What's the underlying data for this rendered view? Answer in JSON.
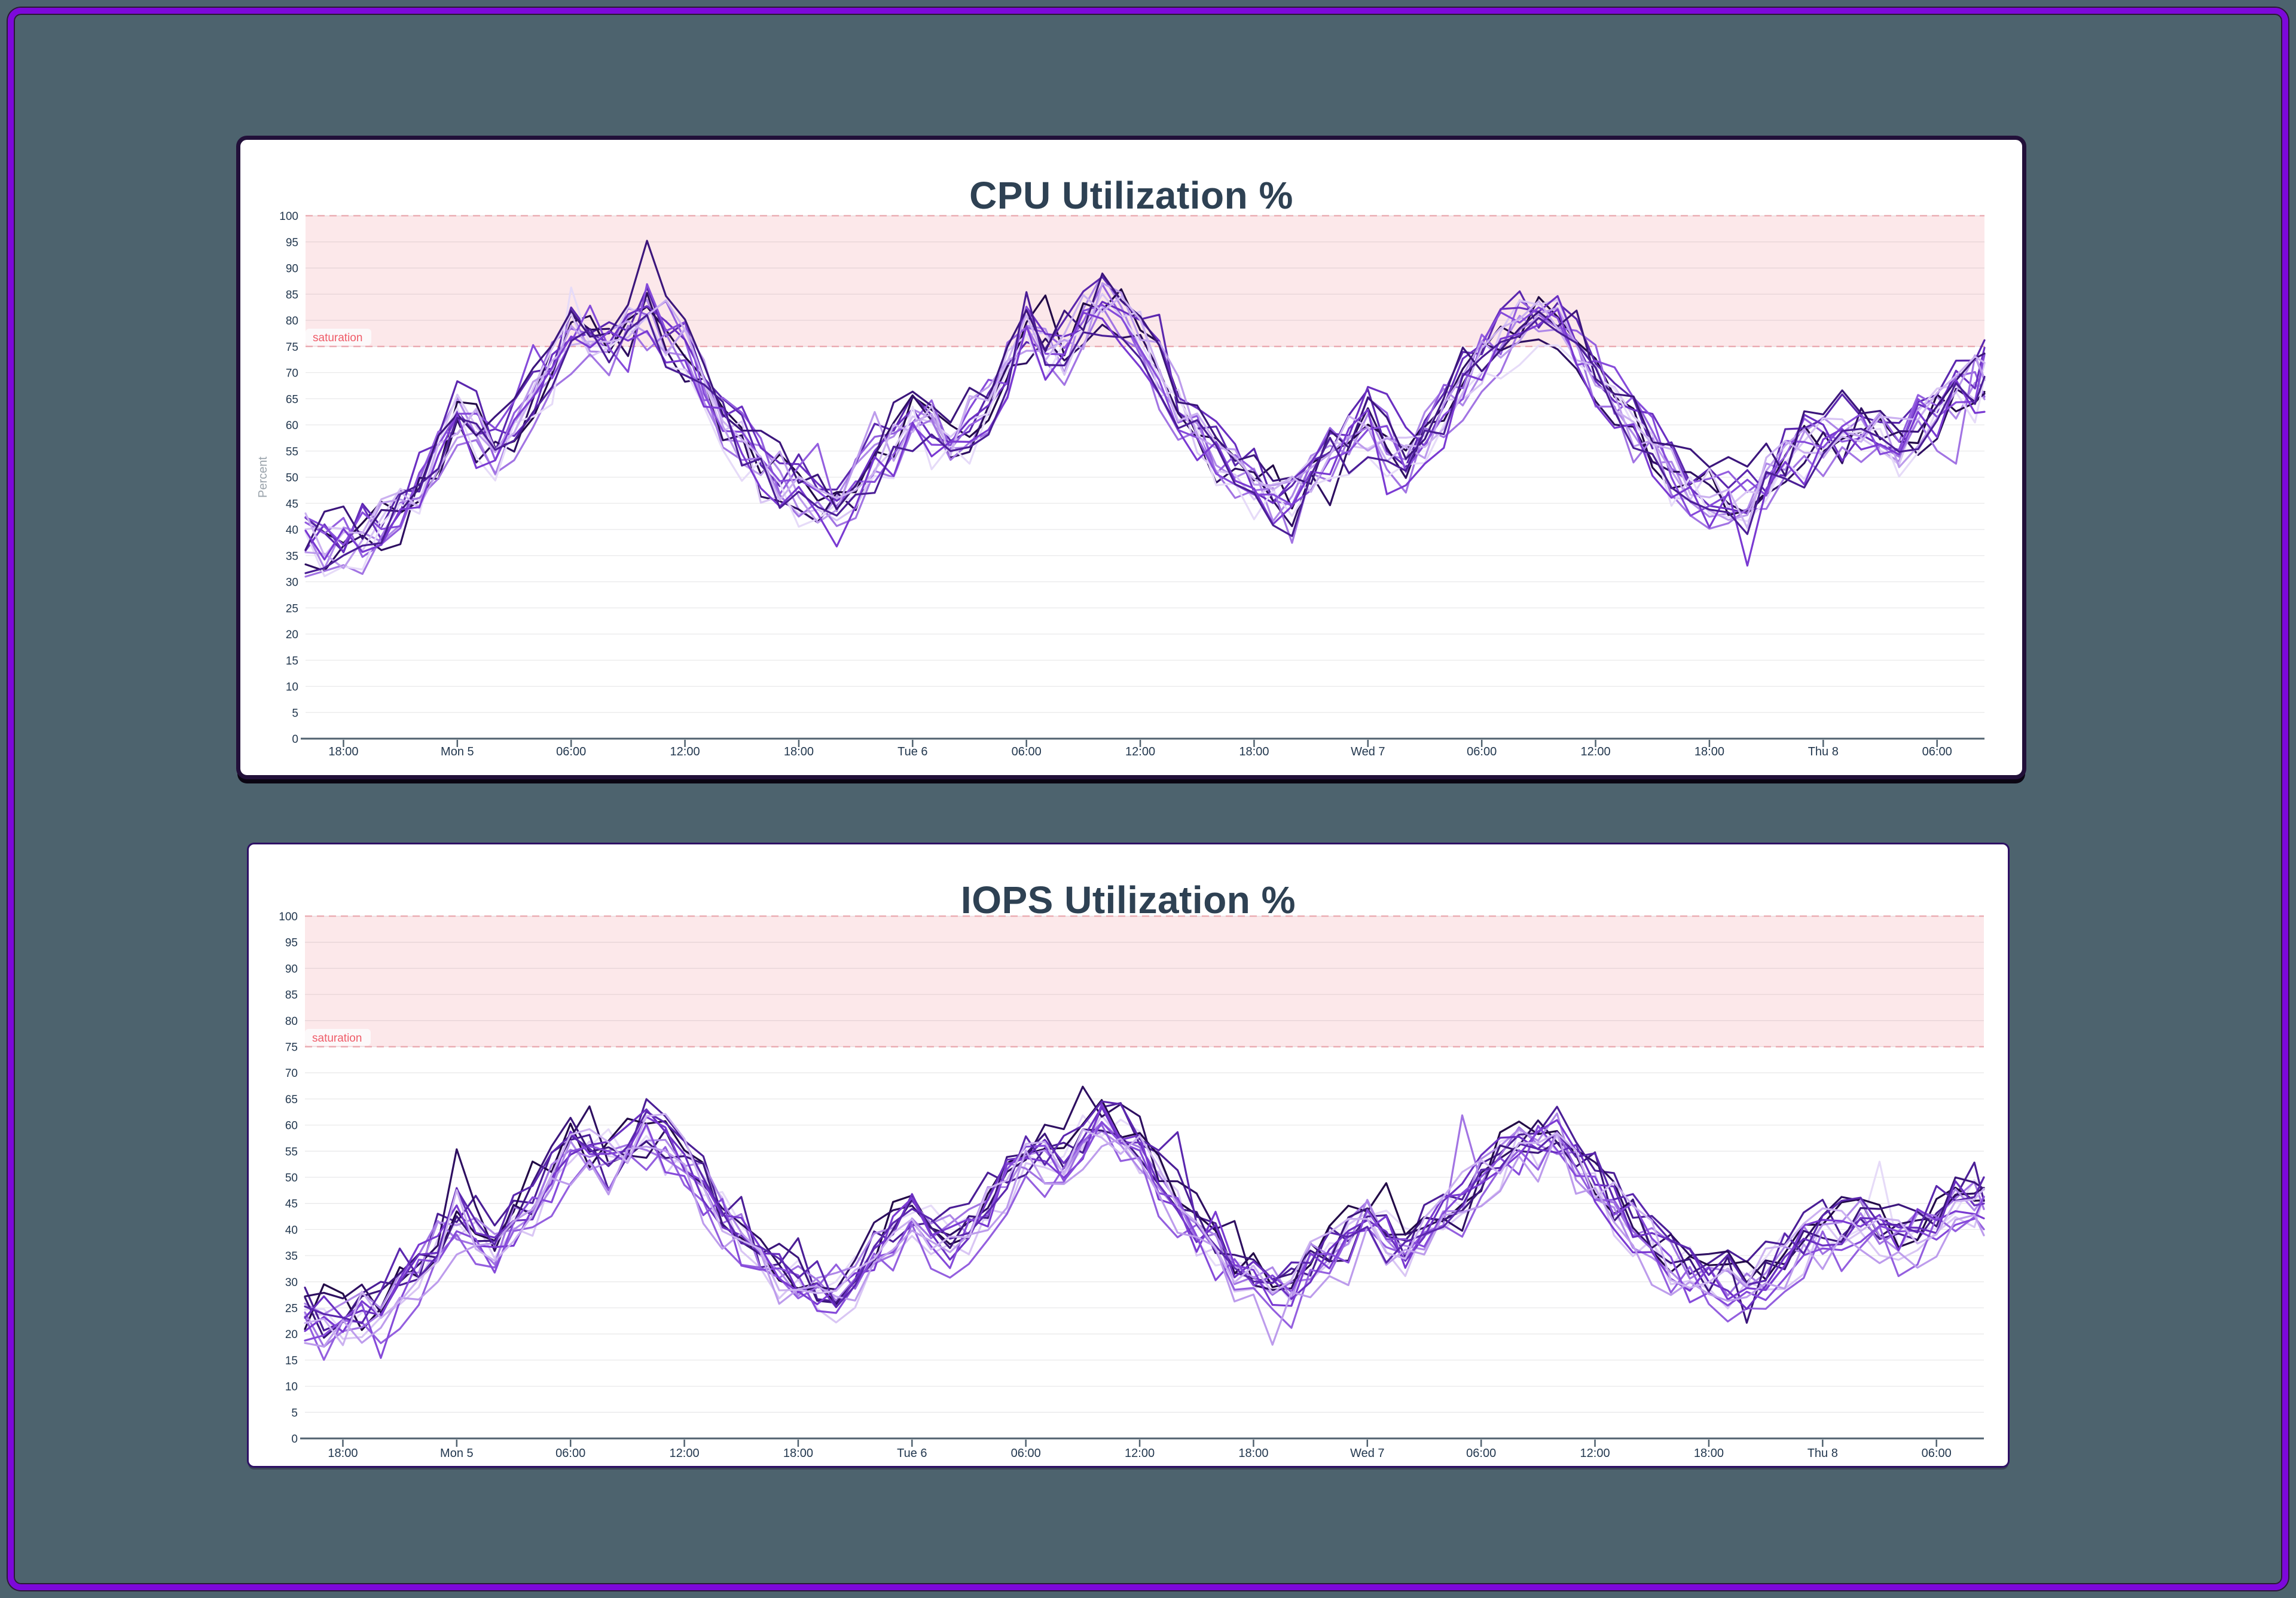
{
  "colors": {
    "page_background": "#4d636e",
    "frame_border": "#7d08da",
    "card_background": "#ffffff",
    "title_text": "#2e4153",
    "tick_text": "#22374e",
    "axis_line": "#51626f",
    "grid_line": "#e2e2e6",
    "band_fill": "#fce8ea",
    "band_edge": "#f7b5bc",
    "saturation_text": "#ef5b68",
    "saturation_pill_fill": "#fcf9fa",
    "ylabel_text": "#9aa3ab",
    "series_palette": [
      "#e6dbf8",
      "#d9c6f4",
      "#cbb1f0",
      "#bd9cec",
      "#af88e8",
      "#a274e3",
      "#945fdf",
      "#864bda",
      "#7a3ad2",
      "#6b30c2",
      "#5b27ae",
      "#4b1e96",
      "#3c167c",
      "#2e0f61",
      "#220947"
    ]
  },
  "chart_data": [
    {
      "type": "line",
      "title": "CPU Utilization %",
      "xlabel": "",
      "ylabel": "Percent",
      "ylim": [
        0,
        100
      ],
      "y_tick_step": 5,
      "grid": "horizontal",
      "legend": "none",
      "x_domain_hours": [
        -2,
        86.5
      ],
      "x_ticks": [
        {
          "hour": 0,
          "label": "18:00"
        },
        {
          "hour": 6,
          "label": "Mon 5"
        },
        {
          "hour": 12,
          "label": "06:00"
        },
        {
          "hour": 18,
          "label": "12:00"
        },
        {
          "hour": 24,
          "label": "18:00"
        },
        {
          "hour": 30,
          "label": "Tue 6"
        },
        {
          "hour": 36,
          "label": "06:00"
        },
        {
          "hour": 42,
          "label": "12:00"
        },
        {
          "hour": 48,
          "label": "18:00"
        },
        {
          "hour": 54,
          "label": "Wed 7"
        },
        {
          "hour": 60,
          "label": "06:00"
        },
        {
          "hour": 66,
          "label": "12:00"
        },
        {
          "hour": 72,
          "label": "18:00"
        },
        {
          "hour": 78,
          "label": "Thu 8"
        },
        {
          "hour": 84,
          "label": "06:00"
        }
      ],
      "saturation_band": {
        "label": "saturation",
        "from": 75,
        "to": 100
      },
      "series_count": 15,
      "base_trend": {
        "start_hour": -2,
        "step_hours": 2,
        "values": [
          38,
          37,
          40,
          48,
          62,
          55,
          64,
          78,
          76,
          82,
          74,
          62,
          52,
          46,
          43,
          52,
          62,
          56,
          64,
          77,
          74,
          84,
          77,
          64,
          54,
          48,
          45,
          55,
          60,
          53,
          62,
          72,
          79,
          80,
          70,
          60,
          51,
          47,
          45,
          52,
          58,
          60,
          56,
          63,
          68
        ]
      },
      "series_style": {
        "step_hours": 1,
        "offset_amp": 3.5,
        "noise_amp": 5.0,
        "spike_chance": 0.03,
        "spike_up": 9,
        "spike_down": 7,
        "clamp": [
          1,
          99
        ],
        "seed": 42
      }
    },
    {
      "type": "line",
      "title": "IOPS Utilization %",
      "xlabel": "",
      "ylabel": "",
      "ylim": [
        0,
        100
      ],
      "y_tick_step": 5,
      "grid": "horizontal",
      "legend": "none",
      "x_domain_hours": [
        -2,
        86.5
      ],
      "x_ticks": [
        {
          "hour": 0,
          "label": "18:00"
        },
        {
          "hour": 6,
          "label": "Mon 5"
        },
        {
          "hour": 12,
          "label": "06:00"
        },
        {
          "hour": 18,
          "label": "12:00"
        },
        {
          "hour": 24,
          "label": "18:00"
        },
        {
          "hour": 30,
          "label": "Tue 6"
        },
        {
          "hour": 36,
          "label": "06:00"
        },
        {
          "hour": 42,
          "label": "12:00"
        },
        {
          "hour": 48,
          "label": "18:00"
        },
        {
          "hour": 54,
          "label": "Wed 7"
        },
        {
          "hour": 60,
          "label": "06:00"
        },
        {
          "hour": 66,
          "label": "12:00"
        },
        {
          "hour": 72,
          "label": "18:00"
        },
        {
          "hour": 78,
          "label": "Thu 8"
        },
        {
          "hour": 84,
          "label": "06:00"
        }
      ],
      "saturation_band": {
        "label": "saturation",
        "from": 75,
        "to": 100
      },
      "series_count": 15,
      "base_trend": {
        "start_hour": -2,
        "step_hours": 2,
        "values": [
          22,
          21,
          24,
          32,
          42,
          37,
          44,
          55,
          53,
          58,
          52,
          43,
          34,
          29,
          27,
          34,
          42,
          37,
          44,
          54,
          52,
          60,
          55,
          44,
          35,
          30,
          28,
          36,
          41,
          35,
          42,
          50,
          56,
          57,
          48,
          40,
          33,
          30,
          28,
          34,
          39,
          41,
          37,
          42,
          46
        ]
      },
      "series_style": {
        "step_hours": 1,
        "offset_amp": 3.5,
        "noise_amp": 4.5,
        "spike_chance": 0.03,
        "spike_up": 13,
        "spike_down": 7,
        "clamp": [
          1,
          95
        ],
        "seed": 1337
      }
    }
  ]
}
